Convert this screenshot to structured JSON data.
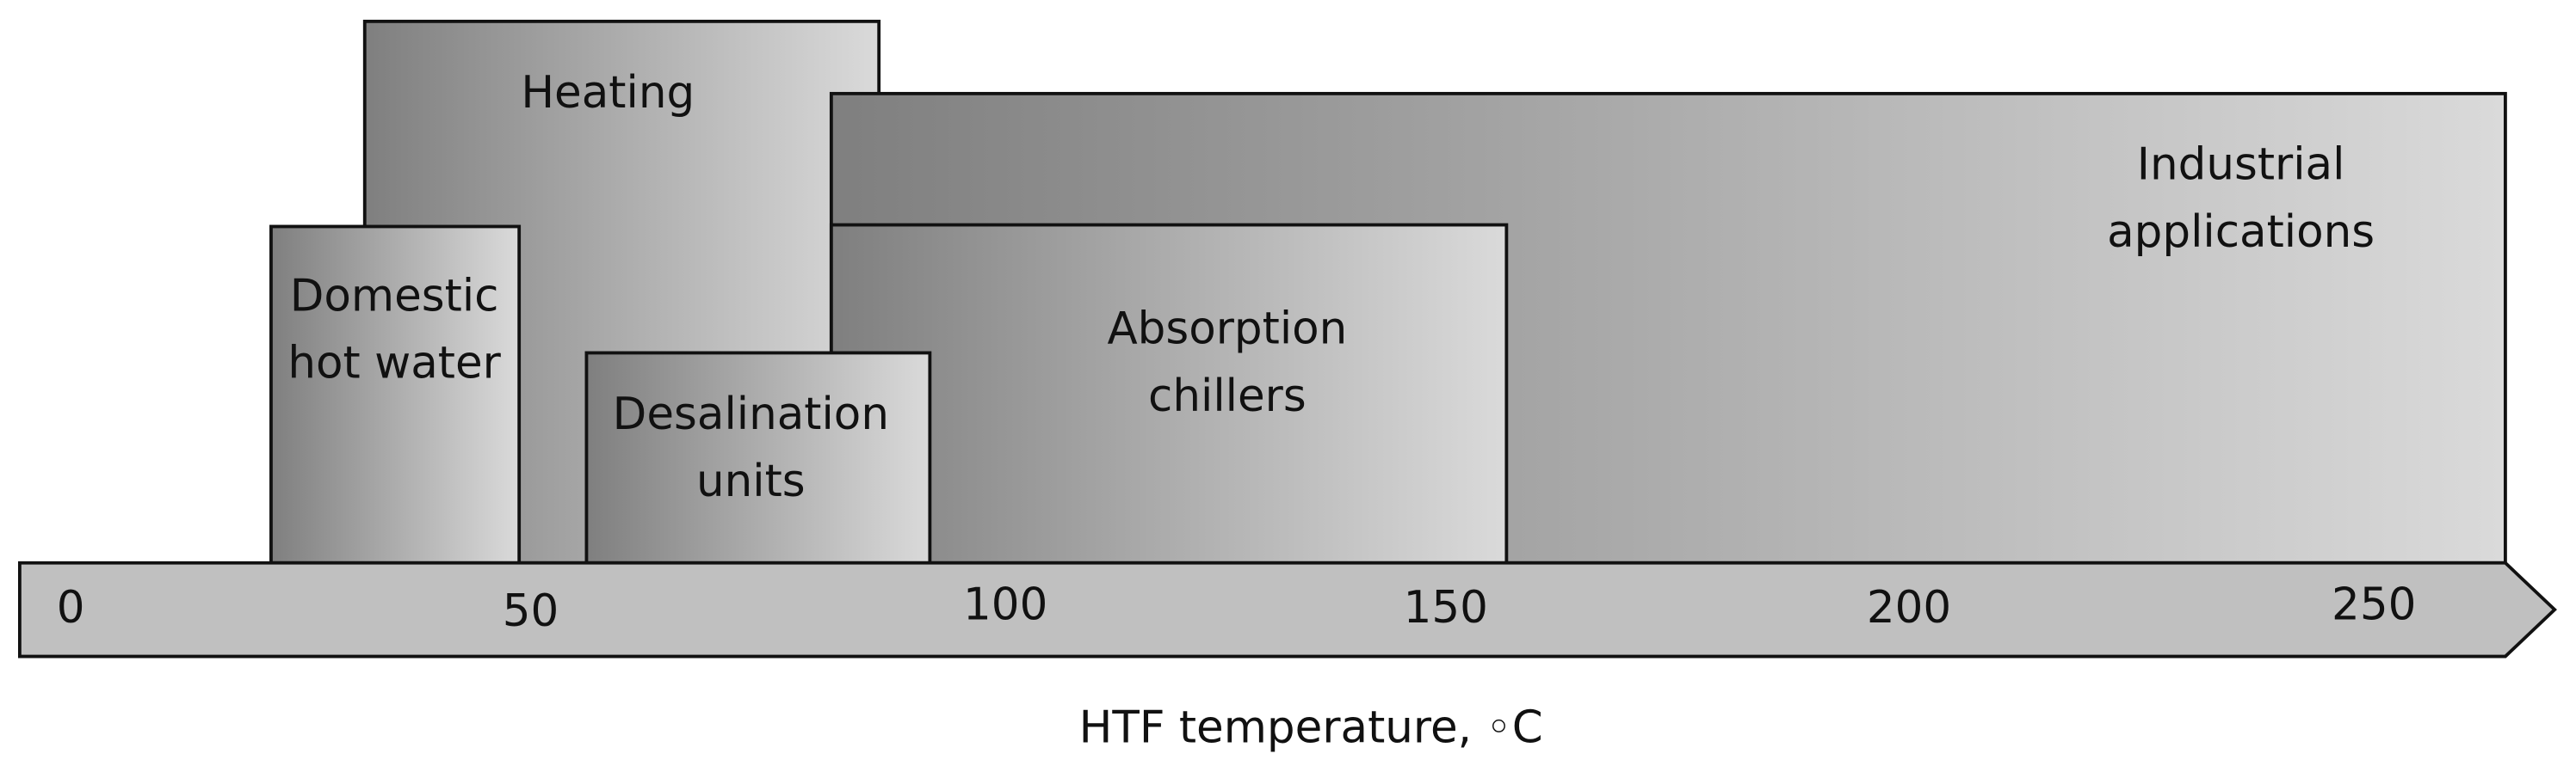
{
  "boxes": [
    {
      "lines": [
        "Heating"
      ]
    },
    {
      "lines": [
        "Industrial",
        "applications"
      ]
    },
    {
      "lines": [
        "Absorption",
        "chillers"
      ]
    },
    {
      "lines": [
        "Domestic",
        "hot water"
      ]
    },
    {
      "lines": [
        "Desalination",
        "units"
      ]
    }
  ],
  "axis": {
    "ticks": [
      0,
      50,
      100,
      150,
      200,
      250
    ],
    "title": "HTF temperature, ◦C"
  }
}
